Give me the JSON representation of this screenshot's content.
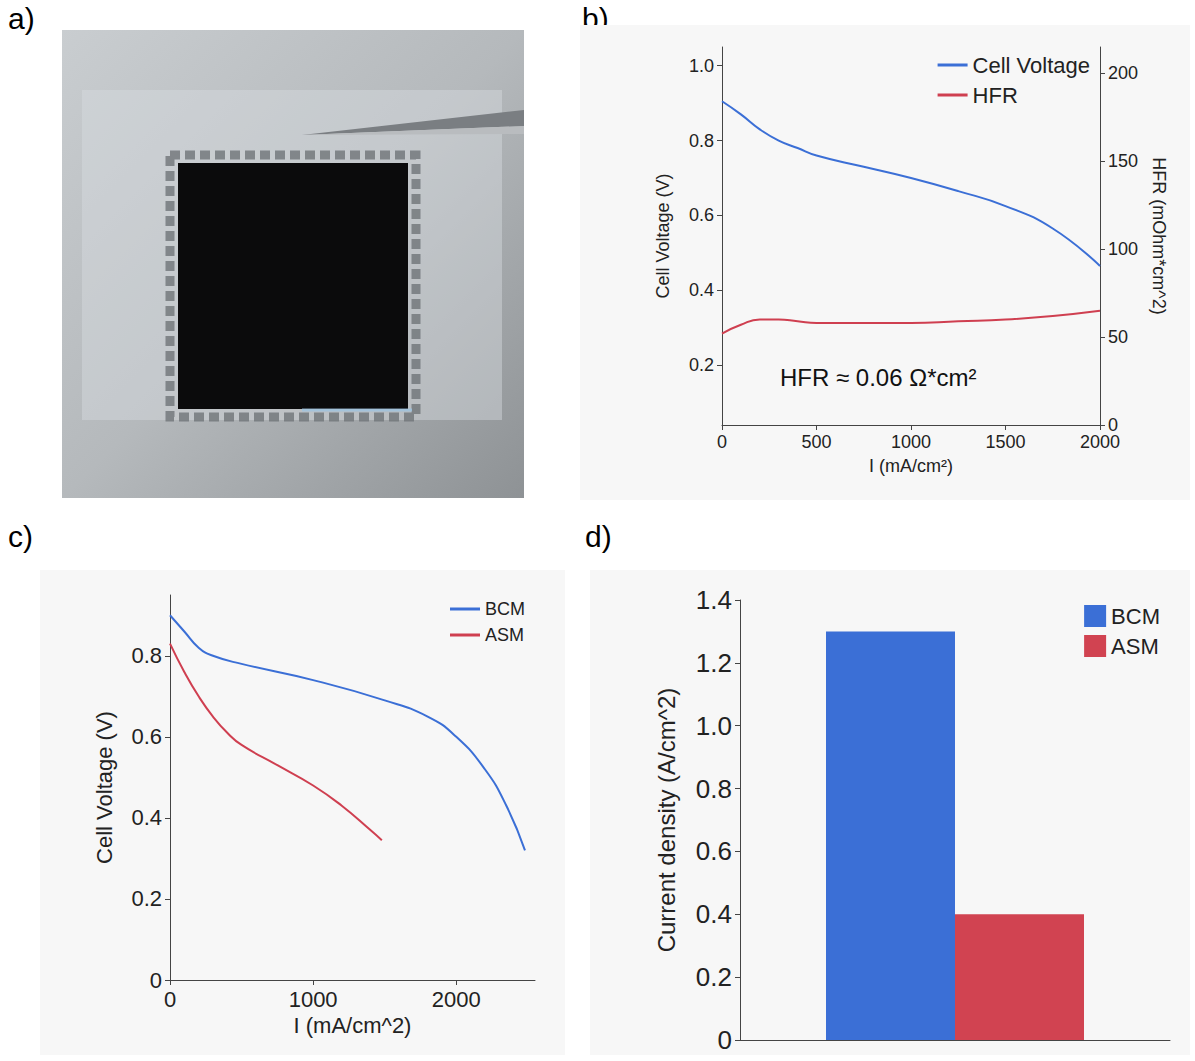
{
  "image": {
    "panel": "a)"
  },
  "chart_data": [
    {
      "panel": "b)",
      "type": "line",
      "x_label": "I (mA/cm²)",
      "y_label": "Cell Voltage (V)",
      "y2_label": "HFR (mOhm*cm^2)",
      "annotation": "HFR ≈ 0.06 Ω*cm²",
      "x": [
        0,
        100,
        200,
        300,
        400,
        500,
        750,
        1000,
        1250,
        1500,
        1750,
        2000
      ],
      "series": [
        {
          "name": "Cell Voltage",
          "color": "#3b6fd6",
          "values": [
            0.905,
            0.87,
            0.83,
            0.8,
            0.78,
            0.76,
            0.73,
            0.7,
            0.665,
            0.625,
            0.565,
            0.465
          ]
        },
        {
          "name": "HFR",
          "color": "#cf3f50",
          "axis": "y2",
          "values": [
            52,
            57,
            60,
            60,
            59,
            58,
            58,
            58,
            59,
            60,
            62,
            65
          ]
        }
      ],
      "xlim": [
        0,
        2000
      ],
      "xticks": [
        0,
        500,
        1000,
        1500,
        2000
      ],
      "ylim": [
        0.04,
        1.05
      ],
      "yticks": [
        0.2,
        0.4,
        0.6,
        0.8,
        {
          "value": 1,
          "label": "1.0"
        }
      ],
      "y2lim": [
        0,
        215
      ],
      "y2ticks": [
        0,
        50,
        100,
        150,
        200
      ],
      "legend": "top-right",
      "grid": false
    },
    {
      "panel": "c)",
      "type": "line",
      "x_label": "I (mA/cm^2)",
      "y_label": "Cell Voltage (V)",
      "series": [
        {
          "name": "BCM",
          "color": "#3b6fd6",
          "x": [
            0,
            100,
            200,
            300,
            500,
            1000,
            1500,
            1800,
            2000,
            2200,
            2350,
            2480
          ],
          "values": [
            0.9,
            0.86,
            0.82,
            0.8,
            0.78,
            0.74,
            0.69,
            0.65,
            0.6,
            0.52,
            0.43,
            0.32
          ]
        },
        {
          "name": "ASM",
          "color": "#cf3f50",
          "x": [
            0,
            100,
            200,
            300,
            400,
            500,
            750,
            1000,
            1200,
            1400,
            1480
          ],
          "values": [
            0.83,
            0.76,
            0.7,
            0.65,
            0.61,
            0.58,
            0.53,
            0.48,
            0.43,
            0.37,
            0.345
          ]
        }
      ],
      "xlim": [
        0,
        2550
      ],
      "xticks": [
        0,
        1000,
        2000
      ],
      "ylim": [
        0,
        0.95
      ],
      "yticks": [
        0,
        0.2,
        0.4,
        0.6,
        0.8
      ],
      "legend": "top-right",
      "grid": false
    },
    {
      "panel": "d)",
      "type": "bar",
      "y_label": "Current density (A/cm^2)",
      "categories": [
        null
      ],
      "series": [
        {
          "name": "BCM",
          "color": "#3b6fd6",
          "values": [
            1.3
          ]
        },
        {
          "name": "ASM",
          "color": "#d14351",
          "values": [
            0.4
          ]
        }
      ],
      "ylim": [
        0,
        1.4
      ],
      "yticks": [
        0,
        0.2,
        0.4,
        0.6,
        0.8,
        {
          "value": 1,
          "label": "1.0"
        },
        1.2,
        1.4
      ],
      "legend": "top-right",
      "grid": false
    }
  ]
}
